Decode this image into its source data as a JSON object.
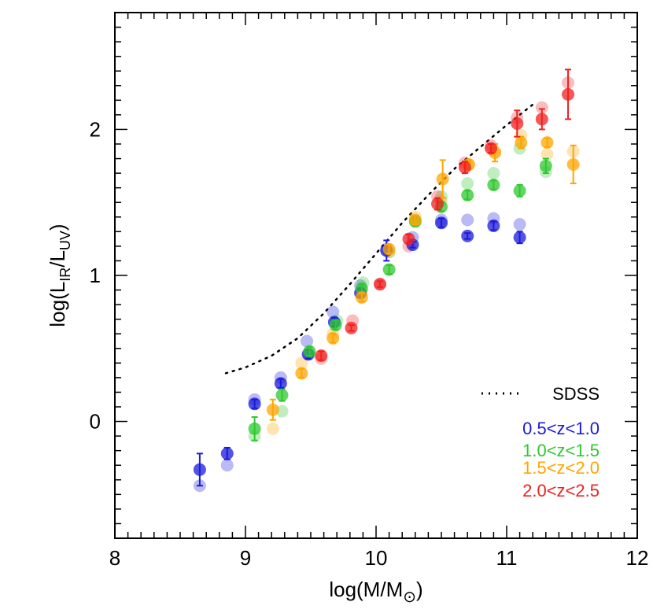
{
  "chart_data": {
    "type": "scatter",
    "title": "",
    "xlabel": "log(M/M⊙)",
    "ylabel": "log(LIR/LUV)",
    "xlim": [
      8,
      12
    ],
    "ylim": [
      -0.8,
      2.8
    ],
    "x_ticks": [
      8,
      9,
      10,
      11,
      12
    ],
    "x_tick_labels": [
      "8",
      "9",
      "10",
      "11",
      "12"
    ],
    "y_ticks": [
      0,
      1,
      2
    ],
    "y_tick_labels": [
      "0",
      "1",
      "2"
    ],
    "legend_position": "bottom-right",
    "reference_curve": {
      "name": "SDSS",
      "style": "dotted",
      "color": "#000000",
      "x": [
        8.85,
        9.0,
        9.2,
        9.4,
        9.6,
        9.8,
        10.0,
        10.2,
        10.4,
        10.6,
        10.8,
        11.0,
        11.2
      ],
      "y": [
        0.33,
        0.37,
        0.45,
        0.57,
        0.74,
        0.94,
        1.15,
        1.36,
        1.55,
        1.73,
        1.88,
        2.03,
        2.17
      ]
    },
    "series": [
      {
        "name": "0.5<z<1.0",
        "color": "#1a1adb",
        "points": [
          {
            "x": 8.65,
            "y": -0.33,
            "err": 0.11
          },
          {
            "x": 8.86,
            "y": -0.22,
            "err": 0.04
          },
          {
            "x": 9.07,
            "y": 0.12,
            "err": 0.03
          },
          {
            "x": 9.27,
            "y": 0.26,
            "err": 0.03
          },
          {
            "x": 9.48,
            "y": 0.46,
            "err": 0.03
          },
          {
            "x": 9.68,
            "y": 0.68,
            "err": 0.03
          },
          {
            "x": 9.88,
            "y": 0.88,
            "err": 0.03
          },
          {
            "x": 10.08,
            "y": 1.17,
            "err": 0.07
          },
          {
            "x": 10.28,
            "y": 1.21,
            "err": 0.02
          },
          {
            "x": 10.5,
            "y": 1.36,
            "err": 0.03
          },
          {
            "x": 10.7,
            "y": 1.27,
            "err": 0.02
          },
          {
            "x": 10.9,
            "y": 1.34,
            "err": 0.03
          },
          {
            "x": 11.1,
            "y": 1.26,
            "err": 0.04
          }
        ],
        "faint": [
          {
            "x": 8.65,
            "y": -0.44
          },
          {
            "x": 8.86,
            "y": -0.3
          },
          {
            "x": 9.07,
            "y": 0.15
          },
          {
            "x": 9.27,
            "y": 0.3
          },
          {
            "x": 9.47,
            "y": 0.55
          },
          {
            "x": 9.67,
            "y": 0.75
          },
          {
            "x": 9.88,
            "y": 0.93
          },
          {
            "x": 10.08,
            "y": 1.18
          },
          {
            "x": 10.28,
            "y": 1.26
          },
          {
            "x": 10.5,
            "y": 1.38
          },
          {
            "x": 10.7,
            "y": 1.38
          },
          {
            "x": 10.9,
            "y": 1.39
          },
          {
            "x": 11.1,
            "y": 1.35
          }
        ]
      },
      {
        "name": "1.0<z<1.5",
        "color": "#2ec82e",
        "points": [
          {
            "x": 9.07,
            "y": -0.05,
            "err": 0.08
          },
          {
            "x": 9.28,
            "y": 0.18,
            "err": 0.04
          },
          {
            "x": 9.49,
            "y": 0.48,
            "err": 0.03
          },
          {
            "x": 9.69,
            "y": 0.66,
            "err": 0.03
          },
          {
            "x": 9.89,
            "y": 0.91,
            "err": 0.03
          },
          {
            "x": 10.1,
            "y": 1.04,
            "err": 0.03
          },
          {
            "x": 10.3,
            "y": 1.37,
            "err": 0.03
          },
          {
            "x": 10.5,
            "y": 1.47,
            "err": 0.03
          },
          {
            "x": 10.7,
            "y": 1.55,
            "err": 0.03
          },
          {
            "x": 10.9,
            "y": 1.62,
            "err": 0.03
          },
          {
            "x": 11.1,
            "y": 1.58,
            "err": 0.04
          },
          {
            "x": 11.3,
            "y": 1.75,
            "err": 0.05
          }
        ],
        "faint": [
          {
            "x": 9.07,
            "y": -0.1
          },
          {
            "x": 9.28,
            "y": 0.07
          },
          {
            "x": 9.49,
            "y": 0.46
          },
          {
            "x": 9.7,
            "y": 0.69
          },
          {
            "x": 9.9,
            "y": 0.95
          },
          {
            "x": 10.1,
            "y": 1.16
          },
          {
            "x": 10.3,
            "y": 1.37
          },
          {
            "x": 10.5,
            "y": 1.54
          },
          {
            "x": 10.7,
            "y": 1.63
          },
          {
            "x": 10.9,
            "y": 1.7
          },
          {
            "x": 11.1,
            "y": 1.87
          },
          {
            "x": 11.3,
            "y": 1.71
          }
        ]
      },
      {
        "name": "1.5<z<2.0",
        "color": "#ffa500",
        "points": [
          {
            "x": 9.21,
            "y": 0.08,
            "err": 0.07
          },
          {
            "x": 9.43,
            "y": 0.33,
            "err": 0.03
          },
          {
            "x": 9.67,
            "y": 0.57,
            "err": 0.03
          },
          {
            "x": 9.89,
            "y": 0.85,
            "err": 0.03
          },
          {
            "x": 10.1,
            "y": 1.18,
            "err": 0.03
          },
          {
            "x": 10.3,
            "y": 1.38,
            "err": 0.03
          },
          {
            "x": 10.51,
            "y": 1.66,
            "err": 0.13
          },
          {
            "x": 10.71,
            "y": 1.76,
            "err": 0.03
          },
          {
            "x": 10.91,
            "y": 1.84,
            "err": 0.06
          },
          {
            "x": 11.11,
            "y": 1.91,
            "err": 0.04
          },
          {
            "x": 11.31,
            "y": 1.91,
            "err": 0.03
          },
          {
            "x": 11.51,
            "y": 1.76,
            "err": 0.13
          }
        ],
        "faint": [
          {
            "x": 9.21,
            "y": -0.05
          },
          {
            "x": 9.43,
            "y": 0.4
          },
          {
            "x": 9.67,
            "y": 0.6
          },
          {
            "x": 9.89,
            "y": 0.88
          },
          {
            "x": 10.1,
            "y": 1.16
          },
          {
            "x": 10.3,
            "y": 1.4
          },
          {
            "x": 10.5,
            "y": 1.51
          },
          {
            "x": 10.71,
            "y": 1.76
          },
          {
            "x": 10.91,
            "y": 1.85
          },
          {
            "x": 11.11,
            "y": 1.96
          },
          {
            "x": 11.31,
            "y": 1.83
          },
          {
            "x": 11.51,
            "y": 1.85
          }
        ]
      },
      {
        "name": "2.0<z<2.5",
        "color": "#f02020",
        "points": [
          {
            "x": 9.58,
            "y": 0.45,
            "err": 0.03
          },
          {
            "x": 9.81,
            "y": 0.64,
            "err": 0.02
          },
          {
            "x": 10.03,
            "y": 0.94,
            "err": 0.02
          },
          {
            "x": 10.25,
            "y": 1.25,
            "err": 0.03
          },
          {
            "x": 10.47,
            "y": 1.49,
            "err": 0.04
          },
          {
            "x": 10.68,
            "y": 1.74,
            "err": 0.04
          },
          {
            "x": 10.88,
            "y": 1.87,
            "err": 0.03
          },
          {
            "x": 11.08,
            "y": 2.04,
            "err": 0.09
          },
          {
            "x": 11.27,
            "y": 2.07,
            "err": 0.07
          },
          {
            "x": 11.47,
            "y": 2.24,
            "err": 0.17
          }
        ],
        "faint": [
          {
            "x": 9.58,
            "y": 0.43
          },
          {
            "x": 9.82,
            "y": 0.69
          },
          {
            "x": 10.03,
            "y": 0.94
          },
          {
            "x": 10.25,
            "y": 1.2
          },
          {
            "x": 10.47,
            "y": 1.54
          },
          {
            "x": 10.68,
            "y": 1.77
          },
          {
            "x": 10.88,
            "y": 1.89
          },
          {
            "x": 11.08,
            "y": 2.08
          },
          {
            "x": 11.27,
            "y": 2.15
          },
          {
            "x": 11.47,
            "y": 2.32
          }
        ]
      }
    ]
  }
}
